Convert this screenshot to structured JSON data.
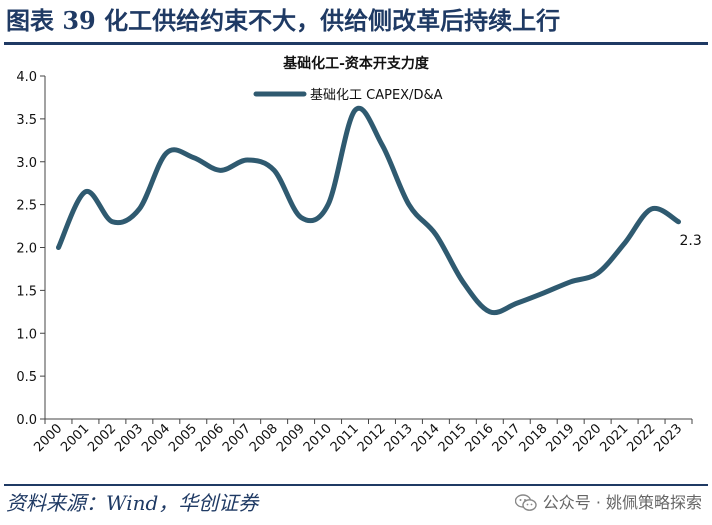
{
  "figure_title": "图表 39  化工供给约束不大，供给侧改革后持续上行",
  "source": "资料来源：Wind，华创证券",
  "watermark": "公众号 · 姚佩策略探索",
  "colors": {
    "line": "#2f5a70",
    "accent": "#1f3a64"
  },
  "chart_data": {
    "type": "line",
    "title": "基础化工-资本开支力度",
    "legend_position": "top-center",
    "grid": false,
    "x": [
      "2000",
      "2001",
      "2002",
      "2003",
      "2004",
      "2005",
      "2006",
      "2007",
      "2008",
      "2009",
      "2010",
      "2011",
      "2012",
      "2013",
      "2014",
      "2015",
      "2016",
      "2017",
      "2018",
      "2019",
      "2020",
      "2021",
      "2022",
      "2023"
    ],
    "ylim": [
      0,
      4.0
    ],
    "yticks": [
      "0.0",
      "0.5",
      "1.0",
      "1.5",
      "2.0",
      "2.5",
      "3.0",
      "3.5",
      "4.0"
    ],
    "series": [
      {
        "name": "基础化工 CAPEX/D&A",
        "values": [
          2.0,
          2.65,
          2.3,
          2.45,
          3.1,
          3.05,
          2.9,
          3.02,
          2.9,
          2.35,
          2.5,
          3.6,
          3.2,
          2.5,
          2.15,
          1.6,
          1.25,
          1.35,
          1.47,
          1.6,
          1.7,
          2.05,
          2.45,
          2.3
        ]
      }
    ],
    "end_label": "2.3"
  }
}
